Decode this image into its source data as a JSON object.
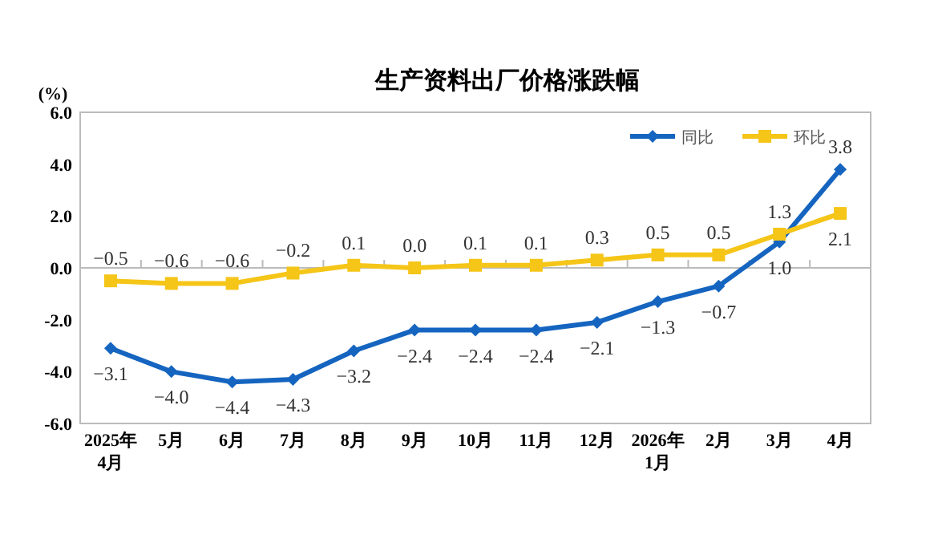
{
  "chart_data": {
    "type": "line",
    "title": "生产资料出厂价格涨跌幅",
    "ylabel": "(%)",
    "categories": [
      "2025年\n4月",
      "5月",
      "6月",
      "7月",
      "8月",
      "9月",
      "10月",
      "11月",
      "12月",
      "2026年\n1月",
      "2月",
      "3月",
      "4月"
    ],
    "series": [
      {
        "name": "同比",
        "color": "#1565c0",
        "marker": "diamond",
        "values": [
          -3.1,
          -4.0,
          -4.4,
          -4.3,
          -3.2,
          -2.4,
          -2.4,
          -2.4,
          -2.1,
          -1.3,
          -0.7,
          1.0,
          3.8
        ],
        "value_labels": [
          "−3.1",
          "−4.0",
          "−4.4",
          "−4.3",
          "−3.2",
          "−2.4",
          "−2.4",
          "−2.4",
          "−2.1",
          "−1.3",
          "−0.7",
          "1.0",
          "3.8"
        ]
      },
      {
        "name": "环比",
        "color": "#f5c518",
        "marker": "square",
        "values": [
          -0.5,
          -0.6,
          -0.6,
          -0.2,
          0.1,
          0.0,
          0.1,
          0.1,
          0.3,
          0.5,
          0.5,
          1.3,
          2.1
        ],
        "value_labels": [
          "−0.5",
          "−0.6",
          "−0.6",
          "−0.2",
          "0.1",
          "0.0",
          "0.1",
          "0.1",
          "0.3",
          "0.5",
          "0.5",
          "1.3",
          "2.1"
        ]
      }
    ],
    "ylim": [
      -6,
      6
    ],
    "yticks": [
      {
        "value": -6,
        "label": "-6.0"
      },
      {
        "value": -4,
        "label": "-4.0"
      },
      {
        "value": -2,
        "label": "-2.0"
      },
      {
        "value": 0,
        "label": "0.0"
      },
      {
        "value": 2,
        "label": "2.0"
      },
      {
        "value": 4,
        "label": "4.0"
      },
      {
        "value": 6,
        "label": "6.0"
      }
    ],
    "legend": "top right",
    "line_style": "solid"
  }
}
